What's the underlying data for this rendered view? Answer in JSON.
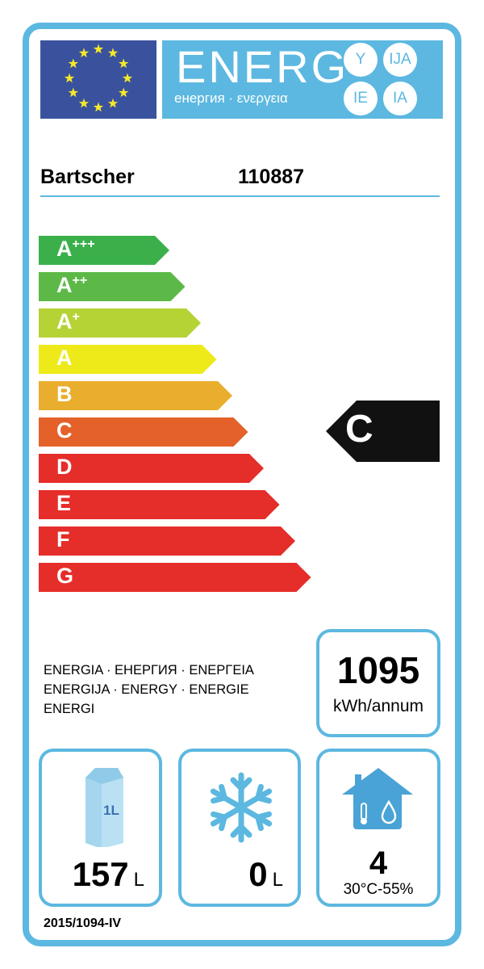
{
  "header": {
    "energy_word": "ENERG",
    "subtitle": "енергия · ενεργεια",
    "suffixes": [
      "Y",
      "IJA",
      "IE",
      "IA"
    ],
    "flag_color": "#3a529e",
    "accent": "#5cb8e0"
  },
  "supplier": {
    "name": "Bartscher",
    "model": "110887"
  },
  "scale": [
    {
      "label": "A",
      "sup": "+++",
      "color": "#3bb04a"
    },
    {
      "label": "A",
      "sup": "++",
      "color": "#5cb947"
    },
    {
      "label": "A",
      "sup": "+",
      "color": "#b5d334"
    },
    {
      "label": "A",
      "sup": "",
      "color": "#eeea1a"
    },
    {
      "label": "B",
      "sup": "",
      "color": "#e9ae2e"
    },
    {
      "label": "C",
      "sup": "",
      "color": "#e4622a"
    },
    {
      "label": "D",
      "sup": "",
      "color": "#e52d2a"
    },
    {
      "label": "E",
      "sup": "",
      "color": "#e52d2a"
    },
    {
      "label": "F",
      "sup": "",
      "color": "#e52d2a"
    },
    {
      "label": "G",
      "sup": "",
      "color": "#e52d2a"
    }
  ],
  "rating": {
    "class": "C",
    "color": "#111111"
  },
  "energy_languages": [
    "ENERGIA · ЕНЕРГИЯ · ΕΝΕΡΓΕΙΑ",
    "ENERGIJA · ENERGY · ENERGIE",
    "ENERGI"
  ],
  "consumption": {
    "value": "1095",
    "unit": "kWh/annum"
  },
  "chilled": {
    "icon": "milk-carton-icon",
    "icon_text": "1L",
    "value": "157",
    "unit": "L"
  },
  "frozen": {
    "icon": "snowflake-icon",
    "value": "0",
    "unit": "L"
  },
  "climate": {
    "icon": "house-climate-icon",
    "class": "4",
    "conditions": "30°C-55%"
  },
  "regulation": "2015/1094-IV"
}
